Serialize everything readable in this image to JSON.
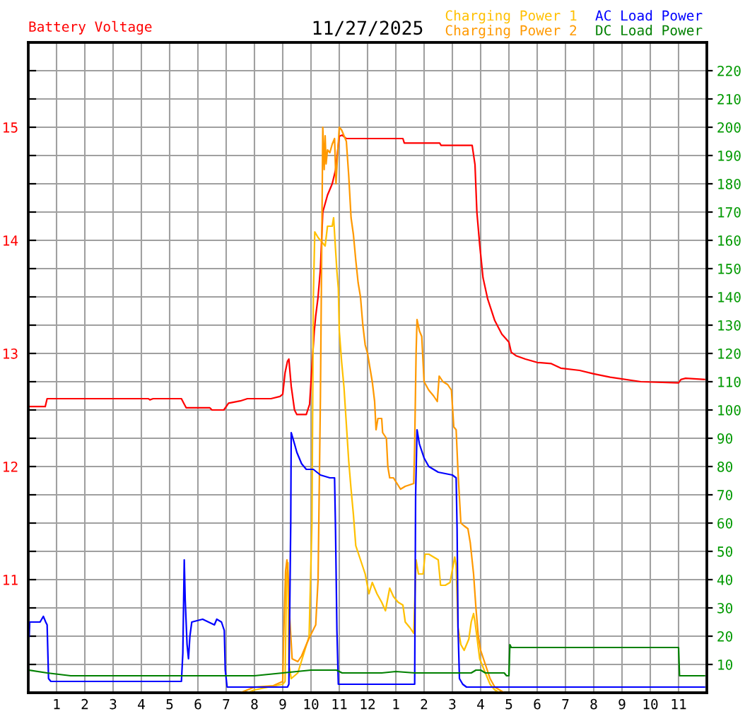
{
  "chart_data": {
    "type": "line",
    "title": "11/27/2025",
    "ylabel": "Battery Voltage",
    "xlim": [
      "2025-11-27T00:00",
      "2025-11-28T00:00"
    ],
    "xticks": [
      {
        "value": "2025-11-27T01:00",
        "label": "1"
      },
      {
        "value": "2025-11-27T02:00",
        "label": "2"
      },
      {
        "value": "2025-11-27T03:00",
        "label": "3"
      },
      {
        "value": "2025-11-27T04:00",
        "label": "4"
      },
      {
        "value": "2025-11-27T05:00",
        "label": "5"
      },
      {
        "value": "2025-11-27T06:00",
        "label": "6"
      },
      {
        "value": "2025-11-27T07:00",
        "label": "7"
      },
      {
        "value": "2025-11-27T08:00",
        "label": "8"
      },
      {
        "value": "2025-11-27T09:00",
        "label": "9"
      },
      {
        "value": "2025-11-27T10:00",
        "label": "10"
      },
      {
        "value": "2025-11-27T11:00",
        "label": "11"
      },
      {
        "value": "2025-11-27T12:00",
        "label": "12"
      },
      {
        "value": "2025-11-27T13:00",
        "label": "1"
      },
      {
        "value": "2025-11-27T14:00",
        "label": "2"
      },
      {
        "value": "2025-11-27T15:00",
        "label": "3"
      },
      {
        "value": "2025-11-27T16:00",
        "label": "4"
      },
      {
        "value": "2025-11-27T17:00",
        "label": "5"
      },
      {
        "value": "2025-11-27T18:00",
        "label": "6"
      },
      {
        "value": "2025-11-27T19:00",
        "label": "7"
      },
      {
        "value": "2025-11-27T20:00",
        "label": "8"
      },
      {
        "value": "2025-11-27T21:00",
        "label": "9"
      },
      {
        "value": "2025-11-27T22:00",
        "label": "10"
      },
      {
        "value": "2025-11-27T23:00",
        "label": "11"
      }
    ],
    "ylim": [
      10,
      15.75
    ],
    "yticks": [
      {
        "value": 10.25,
        "label": null
      },
      {
        "value": 10.5,
        "label": null
      },
      {
        "value": 10.75,
        "label": null
      },
      11,
      {
        "value": 11.25,
        "label": null
      },
      {
        "value": 11.5,
        "label": null
      },
      {
        "value": 11.75,
        "label": null
      },
      12,
      {
        "value": 12.25,
        "label": null
      },
      {
        "value": 12.5,
        "label": null
      },
      {
        "value": 12.75,
        "label": null
      },
      13,
      {
        "value": 13.25,
        "label": null
      },
      {
        "value": 13.5,
        "label": null
      },
      {
        "value": 13.75,
        "label": null
      },
      14,
      {
        "value": 14.25,
        "label": null
      },
      {
        "value": 14.5,
        "label": null
      },
      {
        "value": 14.75,
        "label": null
      },
      15,
      {
        "value": 15.25,
        "label": null
      },
      {
        "value": 15.5,
        "label": null
      }
    ],
    "y2lim": [
      0,
      230
    ],
    "y2ticks": [
      10,
      20,
      30,
      40,
      50,
      60,
      70,
      80,
      90,
      100,
      110,
      120,
      130,
      140,
      150,
      160,
      170,
      180,
      190,
      200,
      210,
      220
    ],
    "grid": true,
    "legend": "top right",
    "series": [
      {
        "color": "#ff0000",
        "axis": "y",
        "x": [
          "2025-11-27T00:02",
          "2025-11-27T00:36",
          "2025-11-27T00:40",
          "2025-11-27T04:15",
          "2025-11-27T04:18",
          "2025-11-27T04:25",
          "2025-11-27T05:25",
          "2025-11-27T05:30",
          "2025-11-27T05:35",
          "2025-11-27T06:25",
          "2025-11-27T06:30",
          "2025-11-27T06:55",
          "2025-11-27T07:05",
          "2025-11-27T07:30",
          "2025-11-27T07:45",
          "2025-11-27T08:35",
          "2025-11-27T08:54",
          "2025-11-27T09:00",
          "2025-11-27T09:05",
          "2025-11-27T09:10",
          "2025-11-27T09:13",
          "2025-11-27T09:18",
          "2025-11-27T09:25",
          "2025-11-27T09:30",
          "2025-11-27T09:50",
          "2025-11-27T09:57",
          "2025-11-27T10:00",
          "2025-11-27T10:03",
          "2025-11-27T10:07",
          "2025-11-27T10:10",
          "2025-11-27T10:15",
          "2025-11-27T10:20",
          "2025-11-27T10:25",
          "2025-11-27T10:35",
          "2025-11-27T10:45",
          "2025-11-27T10:52",
          "2025-11-27T11:00",
          "2025-11-27T11:06",
          "2025-11-27T11:15",
          "2025-11-27T13:15",
          "2025-11-27T13:18",
          "2025-11-27T14:33",
          "2025-11-27T14:36",
          "2025-11-27T15:42",
          "2025-11-27T15:48",
          "2025-11-27T15:52",
          "2025-11-27T15:58",
          "2025-11-27T16:05",
          "2025-11-27T16:15",
          "2025-11-27T16:30",
          "2025-11-27T16:45",
          "2025-11-27T17:00",
          "2025-11-27T17:05",
          "2025-11-27T17:15",
          "2025-11-27T17:35",
          "2025-11-27T18:00",
          "2025-11-27T18:30",
          "2025-11-27T18:50",
          "2025-11-27T19:30",
          "2025-11-27T20:00",
          "2025-11-27T20:35",
          "2025-11-27T21:40",
          "2025-11-27T23:00",
          "2025-11-27T23:05",
          "2025-11-27T23:15",
          "2025-11-27T23:55"
        ],
        "values": [
          12.53,
          12.53,
          12.6,
          12.6,
          12.59,
          12.6,
          12.6,
          12.56,
          12.52,
          12.52,
          12.5,
          12.5,
          12.56,
          12.58,
          12.6,
          12.6,
          12.62,
          12.64,
          12.83,
          12.93,
          12.95,
          12.71,
          12.5,
          12.46,
          12.46,
          12.55,
          12.75,
          12.95,
          13.2,
          13.33,
          13.5,
          13.75,
          14.25,
          14.4,
          14.5,
          14.62,
          14.92,
          14.93,
          14.9,
          14.9,
          14.86,
          14.86,
          14.84,
          14.84,
          14.67,
          14.25,
          13.96,
          13.67,
          13.48,
          13.29,
          13.17,
          13.1,
          13.01,
          12.98,
          12.95,
          12.92,
          12.91,
          12.87,
          12.85,
          12.82,
          12.79,
          12.75,
          12.74,
          12.77,
          12.78,
          12.77
        ]
      },
      {
        "name": "Charging Power 1",
        "color": "#ffc000",
        "axis": "y2",
        "x": [
          "2025-11-27T00:02",
          "2025-11-27T07:45",
          "2025-11-27T08:00",
          "2025-11-27T08:30",
          "2025-11-27T09:00",
          "2025-11-27T09:05",
          "2025-11-27T09:08",
          "2025-11-27T09:11",
          "2025-11-27T09:13",
          "2025-11-27T09:18",
          "2025-11-27T09:32",
          "2025-11-27T09:45",
          "2025-11-27T09:56",
          "2025-11-27T10:02",
          "2025-11-27T10:05",
          "2025-11-27T10:08",
          "2025-11-27T10:15",
          "2025-11-27T10:20",
          "2025-11-27T10:30",
          "2025-11-27T10:35",
          "2025-11-27T10:40",
          "2025-11-27T10:45",
          "2025-11-27T10:48",
          "2025-11-27T10:52",
          "2025-11-27T10:55",
          "2025-11-27T10:58",
          "2025-11-27T11:00",
          "2025-11-27T11:05",
          "2025-11-27T11:10",
          "2025-11-27T11:15",
          "2025-11-27T11:20",
          "2025-11-27T11:25",
          "2025-11-27T11:30",
          "2025-11-27T11:35",
          "2025-11-27T11:45",
          "2025-11-27T11:55",
          "2025-11-27T12:03",
          "2025-11-27T12:10",
          "2025-11-27T12:20",
          "2025-11-27T12:30",
          "2025-11-27T12:38",
          "2025-11-27T12:47",
          "2025-11-27T12:55",
          "2025-11-27T13:05",
          "2025-11-27T13:15",
          "2025-11-27T13:20",
          "2025-11-27T13:30",
          "2025-11-27T13:38",
          "2025-11-27T13:43",
          "2025-11-27T13:48",
          "2025-11-27T13:58",
          "2025-11-27T14:02",
          "2025-11-27T14:10",
          "2025-11-27T14:20",
          "2025-11-27T14:30",
          "2025-11-27T14:35",
          "2025-11-27T14:45",
          "2025-11-27T14:55",
          "2025-11-27T15:05",
          "2025-11-27T15:08",
          "2025-11-27T15:12",
          "2025-11-27T15:18",
          "2025-11-27T15:25",
          "2025-11-27T15:35",
          "2025-11-27T15:40",
          "2025-11-27T15:45",
          "2025-11-27T15:48",
          "2025-11-27T15:52",
          "2025-11-27T15:58",
          "2025-11-27T16:10",
          "2025-11-27T16:20",
          "2025-11-27T16:30",
          "2025-11-27T16:40",
          "2025-11-27T23:55"
        ],
        "values": [
          0,
          0,
          1,
          2,
          3,
          4,
          40,
          46,
          10,
          5,
          7,
          14,
          20,
          60,
          140,
          163,
          161,
          160,
          158,
          165,
          165,
          165,
          168,
          157,
          149,
          143,
          128,
          117,
          108,
          95,
          82,
          72,
          63,
          52,
          47,
          42,
          35,
          39,
          35,
          32,
          29,
          37,
          34,
          32,
          31,
          25,
          23,
          21,
          47,
          42,
          42,
          49,
          49,
          48,
          47,
          38,
          38,
          39,
          48,
          45,
          23,
          17,
          15,
          19,
          25,
          28,
          25,
          20,
          12,
          7,
          3,
          1,
          0,
          0
        ]
      },
      {
        "name": "Charging Power 2",
        "color": "#ff9900",
        "axis": "y2",
        "x": [
          "2025-11-27T00:02",
          "2025-11-27T07:30",
          "2025-11-27T08:00",
          "2025-11-27T08:40",
          "2025-11-27T09:00",
          "2025-11-27T09:02",
          "2025-11-27T09:06",
          "2025-11-27T09:09",
          "2025-11-27T09:12",
          "2025-11-27T09:15",
          "2025-11-27T09:20",
          "2025-11-27T09:32",
          "2025-11-27T09:40",
          "2025-11-27T09:50",
          "2025-11-27T09:58",
          "2025-11-27T10:10",
          "2025-11-27T10:15",
          "2025-11-27T10:20",
          "2025-11-27T10:25",
          "2025-11-27T10:28",
          "2025-11-27T10:30",
          "2025-11-27T10:32",
          "2025-11-27T10:35",
          "2025-11-27T10:40",
          "2025-11-27T10:45",
          "2025-11-27T10:50",
          "2025-11-27T10:53",
          "2025-11-27T10:57",
          "2025-11-27T11:00",
          "2025-11-27T11:05",
          "2025-11-27T11:10",
          "2025-11-27T11:15",
          "2025-11-27T11:20",
          "2025-11-27T11:25",
          "2025-11-27T11:30",
          "2025-11-27T11:35",
          "2025-11-27T11:40",
          "2025-11-27T11:45",
          "2025-11-27T11:50",
          "2025-11-27T11:55",
          "2025-11-27T12:00",
          "2025-11-27T12:10",
          "2025-11-27T12:15",
          "2025-11-27T12:18",
          "2025-11-27T12:22",
          "2025-11-27T12:30",
          "2025-11-27T12:32",
          "2025-11-27T12:40",
          "2025-11-27T12:43",
          "2025-11-27T12:47",
          "2025-11-27T12:55",
          "2025-11-27T13:10",
          "2025-11-27T13:20",
          "2025-11-27T13:38",
          "2025-11-27T13:40",
          "2025-11-27T13:43",
          "2025-11-27T13:45",
          "2025-11-27T13:50",
          "2025-11-27T13:55",
          "2025-11-27T14:00",
          "2025-11-27T14:10",
          "2025-11-27T14:20",
          "2025-11-27T14:28",
          "2025-11-27T14:32",
          "2025-11-27T14:40",
          "2025-11-27T14:50",
          "2025-11-27T14:58",
          "2025-11-27T15:03",
          "2025-11-27T15:08",
          "2025-11-27T15:12",
          "2025-11-27T15:18",
          "2025-11-27T15:25",
          "2025-11-27T15:33",
          "2025-11-27T15:38",
          "2025-11-27T15:45",
          "2025-11-27T15:50",
          "2025-11-27T15:55",
          "2025-11-27T16:00",
          "2025-11-27T16:10",
          "2025-11-27T16:20",
          "2025-11-27T16:30",
          "2025-11-27T16:40",
          "2025-11-27T16:50",
          "2025-11-27T23:55"
        ],
        "values": [
          0,
          0,
          2,
          2.5,
          4,
          20,
          43,
          47,
          40,
          26,
          12,
          11,
          13,
          17,
          20,
          24,
          40,
          105,
          200,
          185,
          197,
          187,
          192,
          191,
          194,
          196,
          180,
          192,
          200,
          199,
          197,
          195,
          183,
          168,
          162,
          153,
          145,
          140,
          130,
          123,
          120,
          110,
          103,
          93,
          97,
          97,
          92,
          90,
          80,
          76,
          76,
          72,
          73,
          74,
          88,
          120,
          132,
          128,
          126,
          110,
          107,
          105,
          103,
          112,
          110,
          109,
          107,
          94,
          93,
          78,
          60,
          59,
          58,
          53,
          42,
          30,
          20,
          15,
          10,
          5,
          2,
          1,
          0,
          0
        ]
      },
      {
        "name": "AC Load Power",
        "color": "#0000ff",
        "axis": "y2",
        "x": [
          "2025-11-27T00:02",
          "2025-11-27T00:03",
          "2025-11-27T00:25",
          "2025-11-27T00:32",
          "2025-11-27T00:37",
          "2025-11-27T00:40",
          "2025-11-27T00:43",
          "2025-11-27T00:48",
          "2025-11-27T05:25",
          "2025-11-27T05:28",
          "2025-11-27T05:30",
          "2025-11-27T05:31",
          "2025-11-27T05:33",
          "2025-11-27T05:37",
          "2025-11-27T05:40",
          "2025-11-27T05:43",
          "2025-11-27T05:47",
          "2025-11-27T06:10",
          "2025-11-27T06:35",
          "2025-11-27T06:40",
          "2025-11-27T06:50",
          "2025-11-27T06:56",
          "2025-11-27T06:58",
          "2025-11-27T07:02",
          "2025-11-27T09:10",
          "2025-11-27T09:13",
          "2025-11-27T09:17",
          "2025-11-27T09:18",
          "2025-11-27T09:25",
          "2025-11-27T09:30",
          "2025-11-27T09:40",
          "2025-11-27T09:50",
          "2025-11-27T10:05",
          "2025-11-27T10:20",
          "2025-11-27T10:40",
          "2025-11-27T10:50",
          "2025-11-27T10:52",
          "2025-11-27T10:55",
          "2025-11-27T10:58",
          "2025-11-27T13:40",
          "2025-11-27T13:42",
          "2025-11-27T13:45",
          "2025-11-27T13:48",
          "2025-11-27T13:50",
          "2025-11-27T14:00",
          "2025-11-27T14:10",
          "2025-11-27T14:20",
          "2025-11-27T14:30",
          "2025-11-27T15:00",
          "2025-11-27T15:08",
          "2025-11-27T15:10",
          "2025-11-27T15:12",
          "2025-11-27T15:15",
          "2025-11-27T15:22",
          "2025-11-27T15:30",
          "2025-11-27T23:55"
        ],
        "values": [
          20,
          25,
          25,
          27,
          25,
          24,
          5,
          4,
          4,
          14,
          36,
          47,
          33,
          17,
          12,
          20,
          25,
          26,
          24,
          26,
          25,
          22,
          8,
          2,
          2,
          3,
          60,
          92,
          88,
          85,
          81,
          79,
          79,
          77,
          76,
          76,
          58,
          22,
          3,
          3,
          70,
          93,
          90,
          88,
          83,
          80,
          79,
          78,
          77,
          76,
          58,
          23,
          5,
          3,
          2,
          2
        ]
      },
      {
        "name": "DC Load Power",
        "color": "#008000",
        "axis": "y2",
        "x": [
          "2025-11-27T00:02",
          "2025-11-27T00:40",
          "2025-11-27T01:30",
          "2025-11-27T05:00",
          "2025-11-27T06:30",
          "2025-11-27T08:00",
          "2025-11-27T09:00",
          "2025-11-27T10:00",
          "2025-11-27T10:54",
          "2025-11-27T11:06",
          "2025-11-27T12:30",
          "2025-11-27T13:00",
          "2025-11-27T13:40",
          "2025-11-27T15:40",
          "2025-11-27T15:50",
          "2025-11-27T16:00",
          "2025-11-27T16:10",
          "2025-11-27T16:50",
          "2025-11-27T16:55",
          "2025-11-27T17:00",
          "2025-11-27T17:02",
          "2025-11-27T17:05",
          "2025-11-27T23:00",
          "2025-11-27T23:02",
          "2025-11-27T23:55"
        ],
        "values": [
          8,
          7,
          6,
          6,
          6,
          6,
          7,
          8,
          8,
          7,
          7,
          7.5,
          7,
          7,
          8,
          8,
          7,
          7,
          6,
          6,
          17,
          16,
          16,
          6,
          6
        ]
      }
    ]
  }
}
